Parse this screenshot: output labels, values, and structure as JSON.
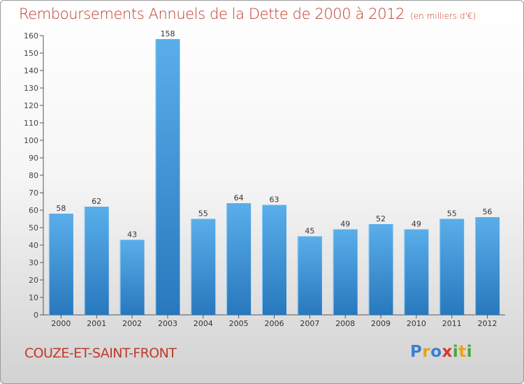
{
  "header": {
    "title": "Remboursements Annuels de la Dette de 2000 à 2012",
    "subtitle": "(en milliers d'€)"
  },
  "footer": {
    "commune": "COUZE-ET-SAINT-FRONT",
    "brand_letters": [
      "P",
      "r",
      "o",
      "x",
      "i",
      "t",
      "i"
    ],
    "brand_colors": [
      "#3a7fd4",
      "#e8a21a",
      "#3a7fd4",
      "#d9342b",
      "#4aa63d",
      "#e8a21a",
      "#4aa63d"
    ]
  },
  "colors": {
    "bar_top": "#5aaeea",
    "bar_bottom": "#2878bd",
    "title": "#c0392b",
    "axis": "#555555"
  },
  "chart_data": {
    "type": "bar",
    "categories": [
      "2000",
      "2001",
      "2002",
      "2003",
      "2004",
      "2005",
      "2006",
      "2007",
      "2008",
      "2009",
      "2010",
      "2011",
      "2012"
    ],
    "values": [
      58,
      62,
      43,
      158,
      55,
      64,
      63,
      45,
      49,
      52,
      49,
      55,
      56
    ],
    "ylim": [
      0,
      160
    ],
    "yticks": [
      0,
      10,
      20,
      30,
      40,
      50,
      60,
      70,
      80,
      90,
      100,
      110,
      120,
      130,
      140,
      150,
      160
    ],
    "grid": false,
    "data_labels": true
  }
}
